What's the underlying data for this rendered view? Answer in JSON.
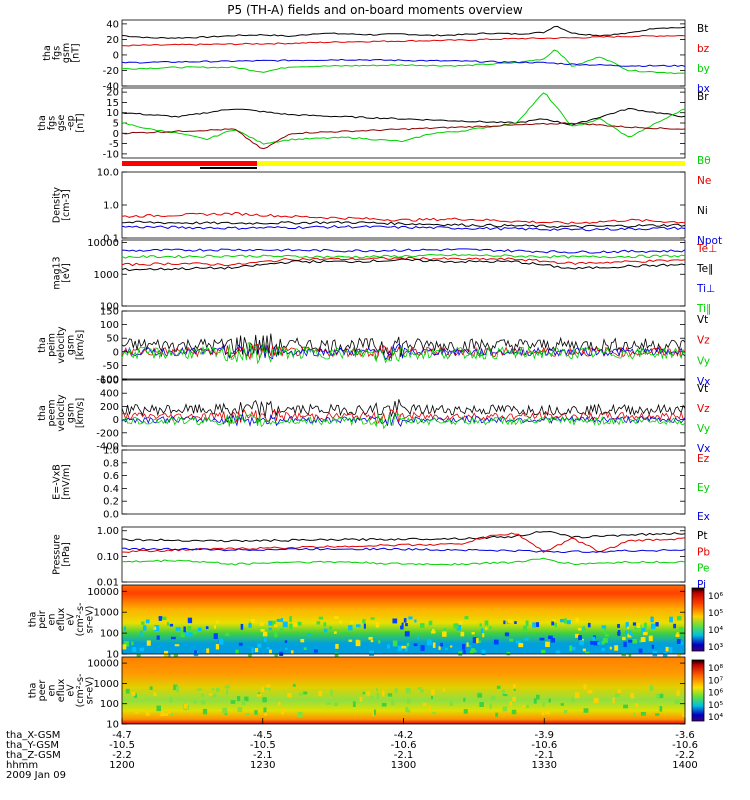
{
  "title": "P5 (TH-A) fields and on-board moments overview",
  "colors": {
    "black": "#000000",
    "red": "#e00000",
    "green": "#00d000",
    "blue": "#0000e0",
    "darkred": "#8b0000",
    "yellow": "#ffff00",
    "barred": "#ff0000"
  },
  "chart_data": {
    "type": "line",
    "time_ticks": [
      "1200",
      "1230",
      "1300",
      "1330",
      "1400"
    ],
    "orbit_labels": [
      {
        "name": "tha_X-GSM",
        "values": [
          "-4.7",
          "-4.5",
          "-4.2",
          "-3.9",
          "-3.6"
        ]
      },
      {
        "name": "tha_Y-GSM",
        "values": [
          "-10.5",
          "-10.5",
          "-10.6",
          "-10.6",
          "-10.6"
        ]
      },
      {
        "name": "tha_Z-GSM",
        "values": [
          "-2.2",
          "-2.1",
          "-2.1",
          "-2.1",
          "-2.2"
        ]
      },
      {
        "name": "hhmm",
        "values": [
          "",
          "",
          "",
          "",
          ""
        ]
      }
    ],
    "date_label": "2009 Jan 09",
    "panels": [
      {
        "id": "p1",
        "ylabel": [
          "tha",
          "fgs",
          "gsm",
          "[nT]"
        ],
        "scale": "linear",
        "ylim": [
          -40,
          45
        ],
        "ticks": [
          "40",
          "20",
          "0",
          "-20",
          "-40"
        ],
        "tick_vals": [
          40,
          20,
          0,
          -20,
          -40
        ],
        "legend": [
          {
            "label": "Bt",
            "color": "black"
          },
          {
            "label": "bz",
            "color": "red"
          },
          {
            "label": "by",
            "color": "green"
          },
          {
            "label": "bx",
            "color": "blue"
          }
        ],
        "series": [
          {
            "color": "black",
            "x": [
              0,
              0.05,
              0.1,
              0.15,
              0.2,
              0.25,
              0.3,
              0.35,
              0.4,
              0.45,
              0.5,
              0.55,
              0.6,
              0.65,
              0.7,
              0.75,
              0.77,
              0.8,
              0.85,
              0.9,
              0.95,
              1.0
            ],
            "y": [
              25,
              22,
              22,
              23,
              25,
              26,
              24,
              28,
              27,
              26,
              27,
              25,
              26,
              28,
              27,
              29,
              38,
              28,
              25,
              28,
              35,
              35
            ]
          },
          {
            "color": "red",
            "x": [
              0,
              0.1,
              0.2,
              0.3,
              0.4,
              0.5,
              0.6,
              0.7,
              0.8,
              0.9,
              1.0
            ],
            "y": [
              12,
              13,
              14,
              15,
              17,
              18,
              19,
              21,
              22,
              24,
              25
            ]
          },
          {
            "color": "green",
            "x": [
              0,
              0.1,
              0.2,
              0.25,
              0.3,
              0.4,
              0.5,
              0.6,
              0.7,
              0.75,
              0.77,
              0.8,
              0.85,
              0.9,
              1.0
            ],
            "y": [
              -18,
              -16,
              -16,
              -22,
              -15,
              -14,
              -13,
              -14,
              -10,
              -5,
              8,
              -15,
              -2,
              -20,
              -24
            ]
          },
          {
            "color": "blue",
            "x": [
              0,
              0.2,
              0.4,
              0.6,
              0.75,
              0.8,
              0.9,
              1.0
            ],
            "y": [
              -10,
              -8,
              -6,
              -8,
              -10,
              -12,
              -14,
              -14
            ]
          }
        ]
      },
      {
        "id": "p2",
        "ylabel": [
          "tha",
          "fgs",
          "gse",
          "-ep",
          "[nT]"
        ],
        "scale": "linear",
        "ylim": [
          -12,
          22
        ],
        "ticks": [
          "20",
          "15",
          "10",
          "5",
          "0",
          "-5",
          "-10"
        ],
        "tick_vals": [
          20,
          15,
          10,
          5,
          0,
          -5,
          -10
        ],
        "legend": [
          {
            "label": "Br",
            "color": "black"
          },
          {
            "label": "Bθ",
            "color": "green"
          }
        ],
        "series": [
          {
            "color": "black",
            "x": [
              0,
              0.1,
              0.2,
              0.3,
              0.4,
              0.5,
              0.6,
              0.7,
              0.75,
              0.8,
              0.85,
              0.9,
              0.95,
              1.0
            ],
            "y": [
              10,
              8,
              12,
              9,
              8,
              7,
              6,
              5,
              7,
              4,
              8,
              12,
              10,
              8
            ]
          },
          {
            "color": "green",
            "x": [
              0,
              0.05,
              0.1,
              0.15,
              0.2,
              0.25,
              0.3,
              0.4,
              0.5,
              0.55,
              0.6,
              0.7,
              0.75,
              0.8,
              0.85,
              0.9,
              1.0
            ],
            "y": [
              5,
              2,
              0,
              -3,
              2,
              -5,
              -3,
              -2,
              -4,
              0,
              1,
              5,
              20,
              3,
              7,
              -2,
              12
            ]
          },
          {
            "color": "darkred",
            "x": [
              0,
              0.1,
              0.2,
              0.25,
              0.3,
              0.4,
              0.5,
              0.6,
              0.7,
              0.8,
              0.9,
              1.0
            ],
            "y": [
              0,
              1,
              2,
              -8,
              0,
              1,
              2,
              3,
              4,
              5,
              3,
              2
            ]
          }
        ]
      },
      {
        "id": "p3",
        "ylabel": [
          "Density",
          "[cm-3]"
        ],
        "scale": "log",
        "ylim": [
          0.1,
          10
        ],
        "ticks": [
          "10.0",
          "1.0",
          "0.1"
        ],
        "tick_vals": [
          10,
          1,
          0.1
        ],
        "legend": [
          {
            "label": "Ne",
            "color": "red"
          },
          {
            "label": "Ni",
            "color": "black"
          },
          {
            "label": "Npot",
            "color": "blue"
          }
        ],
        "series": [
          {
            "color": "red",
            "x": [
              0,
              0.1,
              0.2,
              0.3,
              0.4,
              0.5,
              0.6,
              0.7,
              0.8,
              0.9,
              1.0
            ],
            "y": [
              0.45,
              0.5,
              0.55,
              0.45,
              0.4,
              0.35,
              0.38,
              0.32,
              0.28,
              0.35,
              0.3
            ]
          },
          {
            "color": "black",
            "x": [
              0,
              0.2,
              0.4,
              0.6,
              0.8,
              1.0
            ],
            "y": [
              0.3,
              0.28,
              0.3,
              0.25,
              0.22,
              0.25
            ]
          },
          {
            "color": "blue",
            "x": [
              0,
              0.2,
              0.4,
              0.6,
              0.8,
              1.0
            ],
            "y": [
              0.22,
              0.2,
              0.22,
              0.2,
              0.18,
              0.2
            ]
          }
        ]
      },
      {
        "id": "p4",
        "ylabel": [
          "mag13",
          "[eV]"
        ],
        "scale": "log",
        "ylim": [
          100,
          12000
        ],
        "ticks": [
          "10000",
          "1000",
          "100"
        ],
        "tick_vals": [
          10000,
          1000,
          100
        ],
        "legend": [
          {
            "label": "Te⊥",
            "color": "red"
          },
          {
            "label": "Te‖",
            "color": "black"
          },
          {
            "label": "Ti⊥",
            "color": "blue"
          },
          {
            "label": "Ti‖",
            "color": "green"
          }
        ],
        "series": [
          {
            "color": "blue",
            "x": [
              0,
              0.2,
              0.4,
              0.6,
              0.8,
              1.0
            ],
            "y": [
              5500,
              6000,
              5500,
              6000,
              5000,
              5500
            ]
          },
          {
            "color": "green",
            "x": [
              0,
              0.2,
              0.4,
              0.6,
              0.8,
              1.0
            ],
            "y": [
              3500,
              3800,
              3500,
              4000,
              3500,
              3800
            ]
          },
          {
            "color": "red",
            "x": [
              0,
              0.1,
              0.2,
              0.3,
              0.4,
              0.5,
              0.6,
              0.7,
              0.8,
              0.9,
              1.0
            ],
            "y": [
              2000,
              2200,
              2000,
              3000,
              3000,
              3200,
              3000,
              3000,
              2200,
              2500,
              2800
            ]
          },
          {
            "color": "black",
            "x": [
              0,
              0.1,
              0.2,
              0.3,
              0.4,
              0.5,
              0.6,
              0.7,
              0.8,
              0.9,
              1.0
            ],
            "y": [
              1400,
              1500,
              1600,
              2500,
              2500,
              2800,
              2500,
              2500,
              1500,
              1800,
              2000
            ]
          }
        ]
      },
      {
        "id": "p5",
        "ylabel": [
          "tha",
          "peim",
          "velocity",
          "gsm",
          "[km/s]"
        ],
        "scale": "linear",
        "ylim": [
          -100,
          150
        ],
        "ticks": [
          "150",
          "100",
          "50",
          "0",
          "-50",
          "-100"
        ],
        "tick_vals": [
          150,
          100,
          50,
          0,
          -50,
          -100
        ],
        "legend": [
          {
            "label": "Vt",
            "color": "black"
          },
          {
            "label": "Vz",
            "color": "red"
          },
          {
            "label": "Vy",
            "color": "green"
          },
          {
            "label": "Vx",
            "color": "blue"
          }
        ],
        "noise": [
          {
            "color": "black",
            "base": 25,
            "amp": 25
          },
          {
            "color": "red",
            "base": 0,
            "amp": 18
          },
          {
            "color": "blue",
            "base": 0,
            "amp": 15
          },
          {
            "color": "green",
            "base": -5,
            "amp": 22
          }
        ]
      },
      {
        "id": "p6",
        "ylabel": [
          "tha",
          "peem",
          "velocity",
          "gsm",
          "[km/s]"
        ],
        "scale": "linear",
        "ylim": [
          -400,
          600
        ],
        "ticks": [
          "600",
          "400",
          "200",
          "0",
          "-200",
          "-400"
        ],
        "tick_vals": [
          600,
          400,
          200,
          0,
          -200,
          -400
        ],
        "legend": [
          {
            "label": "Vt",
            "color": "black"
          },
          {
            "label": "Vz",
            "color": "red"
          },
          {
            "label": "Vy",
            "color": "green"
          },
          {
            "label": "Vx",
            "color": "blue"
          }
        ],
        "noise": [
          {
            "color": "black",
            "base": 150,
            "amp": 80
          },
          {
            "color": "red",
            "base": 50,
            "amp": 60
          },
          {
            "color": "blue",
            "base": 0,
            "amp": 50
          },
          {
            "color": "green",
            "base": -20,
            "amp": 60
          }
        ]
      },
      {
        "id": "p7",
        "ylabel": [
          "E=-VxB",
          "[mV/m]"
        ],
        "scale": "linear",
        "ylim": [
          0,
          1
        ],
        "ticks": [
          "1.0",
          "0.8",
          "0.6",
          "0.4",
          "0.2",
          "0.0"
        ],
        "tick_vals": [
          1,
          0.8,
          0.6,
          0.4,
          0.2,
          0
        ],
        "legend": [
          {
            "label": "Ez",
            "color": "red"
          },
          {
            "label": "Ey",
            "color": "green"
          },
          {
            "label": "Ex",
            "color": "blue"
          }
        ],
        "series": []
      },
      {
        "id": "p8",
        "ylabel": [
          "Pressure",
          "[nPa]"
        ],
        "scale": "log",
        "ylim": [
          0.01,
          1.4
        ],
        "ticks": [
          "1.00",
          "0.10",
          "0.01"
        ],
        "tick_vals": [
          1,
          0.1,
          0.01
        ],
        "legend": [
          {
            "label": "Pt",
            "color": "black"
          },
          {
            "label": "Pb",
            "color": "red"
          },
          {
            "label": "Pe",
            "color": "green"
          },
          {
            "label": "Pi",
            "color": "blue"
          }
        ],
        "series": [
          {
            "color": "black",
            "x": [
              0,
              0.2,
              0.4,
              0.6,
              0.7,
              0.75,
              0.8,
              0.9,
              1.0
            ],
            "y": [
              0.45,
              0.4,
              0.45,
              0.5,
              0.6,
              1.0,
              0.55,
              0.7,
              0.8
            ]
          },
          {
            "color": "red",
            "x": [
              0,
              0.1,
              0.2,
              0.3,
              0.4,
              0.5,
              0.6,
              0.65,
              0.7,
              0.75,
              0.8,
              0.85,
              0.9,
              1.0
            ],
            "y": [
              0.15,
              0.18,
              0.2,
              0.22,
              0.25,
              0.28,
              0.3,
              0.6,
              0.8,
              0.15,
              0.5,
              0.15,
              0.4,
              0.5
            ]
          },
          {
            "color": "blue",
            "x": [
              0,
              0.2,
              0.4,
              0.6,
              0.8,
              1.0
            ],
            "y": [
              0.2,
              0.18,
              0.2,
              0.18,
              0.15,
              0.18
            ]
          },
          {
            "color": "green",
            "x": [
              0,
              0.1,
              0.2,
              0.3,
              0.4,
              0.5,
              0.6,
              0.7,
              0.75,
              0.8,
              0.9,
              1.0
            ],
            "y": [
              0.06,
              0.07,
              0.05,
              0.06,
              0.06,
              0.05,
              0.05,
              0.06,
              0.08,
              0.05,
              0.06,
              0.06
            ]
          }
        ]
      },
      {
        "id": "s1",
        "type": "heatmap",
        "ylabel": [
          "tha",
          "peir",
          "en",
          "eflux",
          "eV",
          "(cm²-s-",
          "sr-eV)"
        ],
        "scale": "log",
        "ylim": [
          10,
          20000
        ],
        "ticks": [
          "10000",
          "1000",
          "100",
          "10"
        ],
        "tick_vals": [
          10000,
          1000,
          100,
          10
        ],
        "colorbar": [
          "10⁶",
          "10⁵",
          "10⁴",
          "10³"
        ]
      },
      {
        "id": "s2",
        "type": "heatmap",
        "ylabel": [
          "tha",
          "peer",
          "en",
          "eflux",
          "eV",
          "(cm²-s-",
          "sr-eV)"
        ],
        "scale": "log",
        "ylim": [
          10,
          20000
        ],
        "ticks": [
          "10000",
          "1000",
          "100",
          "10"
        ],
        "tick_vals": [
          10000,
          1000,
          100,
          10
        ],
        "colorbar": [
          "10⁸",
          "10⁷",
          "10⁶",
          "10⁵",
          "10⁴"
        ]
      }
    ]
  }
}
